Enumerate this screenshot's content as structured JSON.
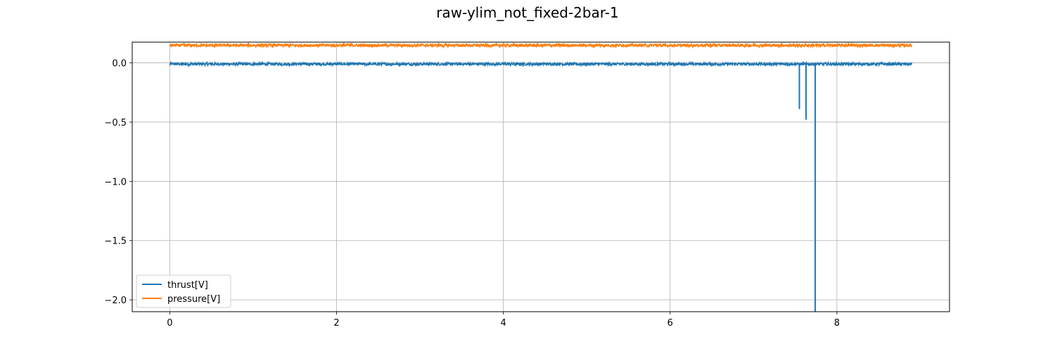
{
  "chart_data": {
    "type": "line",
    "title": "raw-ylim_not_fixed-2bar-1",
    "xlabel": "",
    "ylabel": "",
    "xlim": [
      -0.45,
      9.35
    ],
    "ylim": [
      -2.1,
      0.175
    ],
    "xticks": [
      0,
      2,
      4,
      6,
      8
    ],
    "yticks": [
      0.0,
      -0.5,
      -1.0,
      -1.5,
      -2.0
    ],
    "xtick_labels": [
      "0",
      "2",
      "4",
      "6",
      "8"
    ],
    "ytick_labels": [
      "0.0",
      "−0.5",
      "−1.0",
      "−1.5",
      "−2.0"
    ],
    "grid": true,
    "legend_position": "lower-left",
    "x_range": [
      0,
      8.9
    ],
    "series": [
      {
        "name": "thrust[V]",
        "color": "#1f77b4",
        "baseline": -0.01,
        "noise": 0.012,
        "spikes": [
          {
            "x": 7.55,
            "y": -0.39
          },
          {
            "x": 7.63,
            "y": -0.48
          },
          {
            "x": 7.74,
            "y": -2.1
          }
        ]
      },
      {
        "name": "pressure[V]",
        "color": "#ff7f0e",
        "baseline": 0.148,
        "noise": 0.012
      }
    ]
  }
}
